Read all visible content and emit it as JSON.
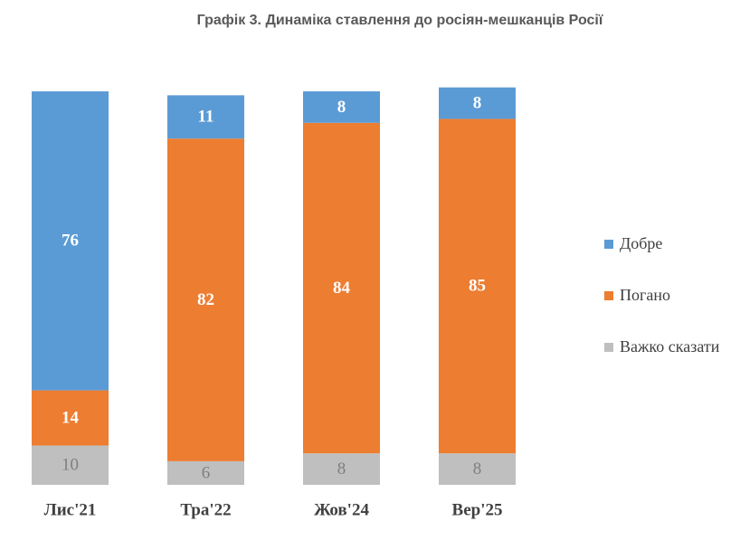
{
  "chart_data": {
    "type": "stacked-bar",
    "title": "Графік 3. Динаміка ставлення до росіян-мешканців Росії",
    "categories": [
      "Лис'21",
      "Тра'22",
      "Жов'24",
      "Вер'25"
    ],
    "series": [
      {
        "name": "Добре",
        "color": "#5b9bd5",
        "values": [
          76,
          11,
          8,
          8
        ]
      },
      {
        "name": "Погано",
        "color": "#ed7d31",
        "values": [
          14,
          82,
          84,
          85
        ]
      },
      {
        "name": "Важко сказати",
        "color": "#bfbfbf",
        "values": [
          10,
          6,
          8,
          8
        ]
      }
    ],
    "legend": "right"
  }
}
